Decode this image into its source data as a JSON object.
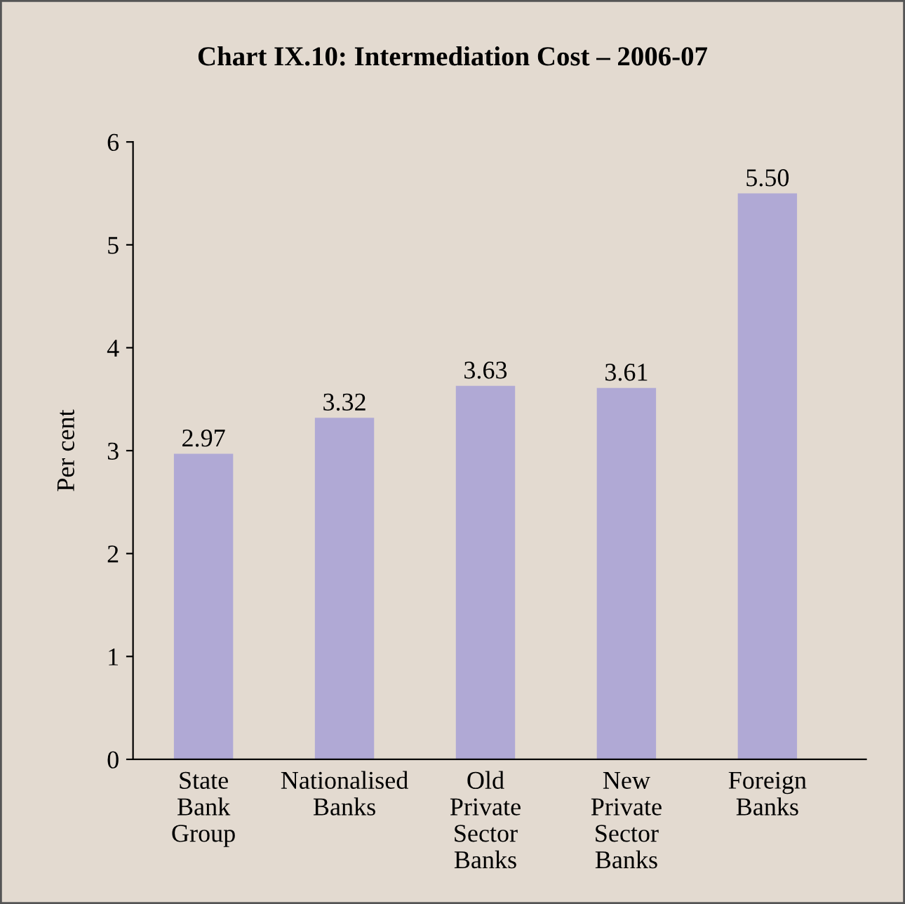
{
  "chart_data": {
    "type": "bar",
    "title": "Chart IX.10: Intermediation Cost – 2006-07",
    "ylabel": "Per cent",
    "categories": [
      "State\nBank\nGroup",
      "Nationalised\nBanks",
      "Old\nPrivate\nSector\nBanks",
      "New\nPrivate\nSector\nBanks",
      "Foreign\nBanks"
    ],
    "values": [
      2.97,
      3.32,
      3.63,
      3.61,
      5.5
    ],
    "value_labels": [
      "2.97",
      "3.32",
      "3.63",
      "3.61",
      "5.50"
    ],
    "color": "#b0a9d5",
    "ylim": [
      0,
      6
    ],
    "yticks": [
      0,
      1,
      2,
      3,
      4,
      5,
      6
    ],
    "grid": false,
    "legend": false
  }
}
